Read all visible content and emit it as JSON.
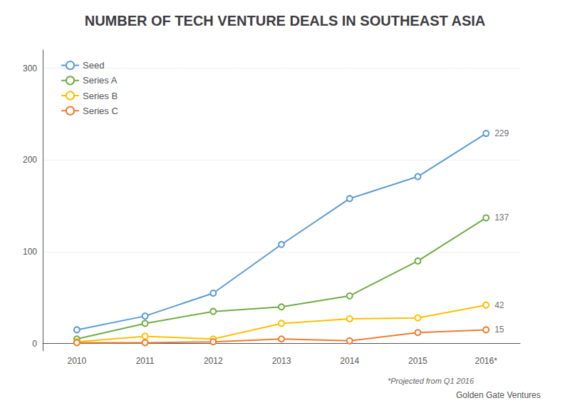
{
  "chart_data": {
    "type": "line",
    "title": "NUMBER OF TECH VENTURE DEALS IN SOUTHEAST ASIA",
    "categories": [
      "2010",
      "2011",
      "2012",
      "2013",
      "2014",
      "2015",
      "2016*"
    ],
    "series": [
      {
        "name": "Seed",
        "color": "#5b9bd5",
        "values": [
          15,
          30,
          55,
          108,
          158,
          182,
          229
        ]
      },
      {
        "name": "Series A",
        "color": "#70ad47",
        "values": [
          5,
          22,
          35,
          40,
          52,
          90,
          137
        ]
      },
      {
        "name": "Series B",
        "color": "#ffc000",
        "values": [
          2,
          8,
          5,
          22,
          27,
          28,
          42
        ]
      },
      {
        "name": "Series C",
        "color": "#ed7d31",
        "values": [
          1,
          1,
          2,
          5,
          3,
          12,
          15
        ]
      }
    ],
    "marker": "circle",
    "ylim": [
      -8,
      320
    ],
    "yticks": [
      0,
      100,
      200,
      300
    ],
    "grid": true,
    "legend": "upper left",
    "annotations": [
      {
        "text": "229",
        "x": "2016*",
        "y": 229
      },
      {
        "text": "137",
        "x": "2016*",
        "y": 137
      },
      {
        "text": "42",
        "x": "2016*",
        "y": 42
      },
      {
        "text": "15",
        "x": "2016*",
        "y": 15
      }
    ],
    "footnote": "*Projected from Q1 2016",
    "source": "Golden Gate Ventures"
  }
}
